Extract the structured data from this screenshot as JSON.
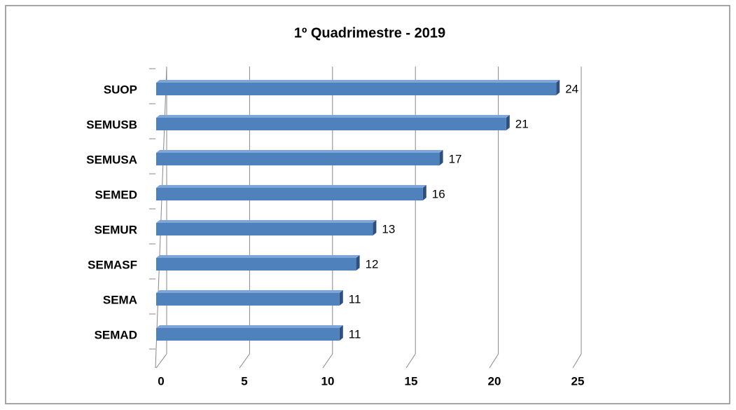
{
  "chart_data": {
    "type": "bar",
    "orientation": "horizontal",
    "title": "1º Quadrimestre - 2019",
    "categories": [
      "SUOP",
      "SEMUSB",
      "SEMUSA",
      "SEMED",
      "SEMUR",
      "SEMASF",
      "SEMA",
      "SEMAD"
    ],
    "values": [
      24,
      21,
      17,
      16,
      13,
      12,
      11,
      11
    ],
    "color": "#4f81bd",
    "xlim": [
      0,
      25
    ],
    "xticks": [
      0,
      5,
      10,
      15,
      20,
      25
    ],
    "grid": true
  }
}
